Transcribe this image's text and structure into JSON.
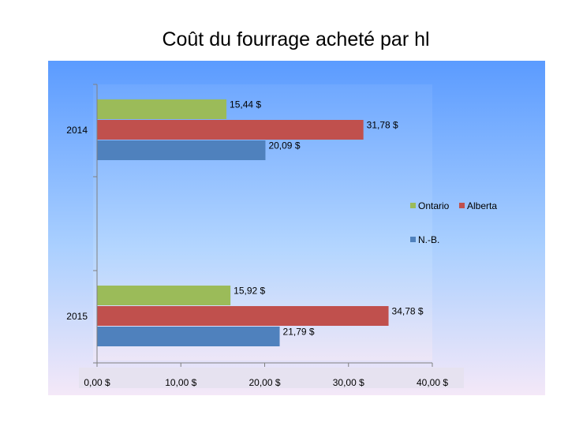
{
  "chart_data": {
    "type": "bar",
    "orientation": "horizontal",
    "title": "Coût du fourrage acheté par hl",
    "categories": [
      "2014",
      "2015"
    ],
    "series": [
      {
        "name": "Ontario",
        "color": "#9BBB59",
        "values": [
          15.44,
          15.92
        ],
        "labels": [
          "15,44 $",
          "15,92 $"
        ]
      },
      {
        "name": "Alberta",
        "color": "#C0504D",
        "values": [
          31.78,
          34.78
        ],
        "labels": [
          "31,78 $",
          "34,78 $"
        ]
      },
      {
        "name": "N.-B.",
        "color": "#4F81BD",
        "values": [
          20.09,
          21.79
        ],
        "labels": [
          "20,09 $",
          "21,79 $"
        ]
      }
    ],
    "xlim": [
      0,
      40
    ],
    "xticks": [
      0,
      10,
      20,
      30,
      40
    ],
    "xtick_labels": [
      "0,00 $",
      "10,00 $",
      "20,00 $",
      "30,00 $",
      "40,00 $"
    ],
    "legend_placement": "right",
    "grid": false
  }
}
